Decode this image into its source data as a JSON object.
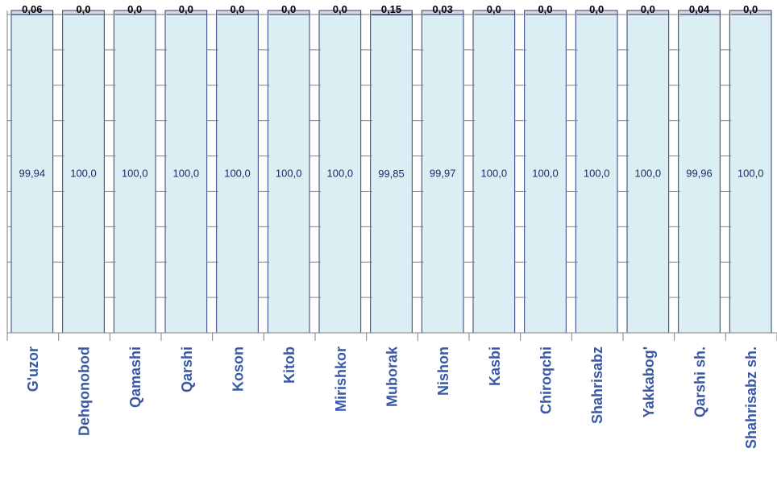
{
  "chart_data": {
    "type": "bar",
    "stacked": true,
    "percent": true,
    "categories": [
      "G'uzor",
      "Dehqonobod",
      "Qamashi",
      "Qarshi",
      "Koson",
      "Kitob",
      "Mirishkor",
      "Muborak",
      "Nishon",
      "Kasbi",
      "Chiroqchi",
      "Shahrisabz",
      "Yakkabog'",
      "Qarshi sh.",
      "Shahrisabz sh."
    ],
    "series": [
      {
        "values": [
          99.94,
          100.0,
          100.0,
          100.0,
          100.0,
          100.0,
          100.0,
          99.85,
          99.97,
          100.0,
          100.0,
          100.0,
          100.0,
          99.96,
          100.0
        ]
      },
      {
        "values": [
          0.06,
          0.0,
          0.0,
          0.0,
          0.0,
          0.0,
          0.0,
          0.15,
          0.03,
          0.0,
          0.0,
          0.0,
          0.0,
          0.04,
          0.0
        ]
      }
    ],
    "main_labels": [
      "99,94",
      "100,0",
      "100,0",
      "100,0",
      "100,0",
      "100,0",
      "100,0",
      "99,85",
      "99,97",
      "100,0",
      "100,0",
      "100,0",
      "100,0",
      "99,96",
      "100,0"
    ],
    "top_labels": [
      "0,06",
      "0,0",
      "0,0",
      "0,0",
      "0,0",
      "0,0",
      "0,0",
      "0,15",
      "0,03",
      "0,0",
      "0,0",
      "0,0",
      "0,0",
      "0,04",
      "0,0"
    ],
    "ylim": [
      0,
      100
    ],
    "grid": false,
    "colors": {
      "main": "#daeef3",
      "top": "#d9d9d9",
      "border": "#2e3d7a",
      "category_text": "#3a58a8"
    }
  }
}
